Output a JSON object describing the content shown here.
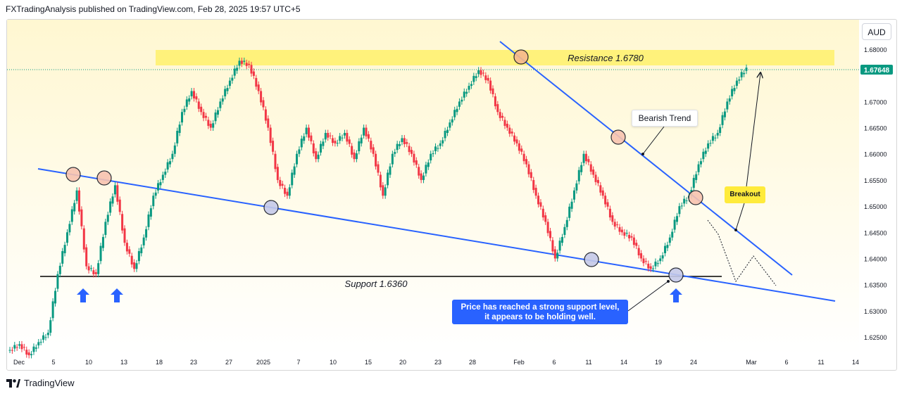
{
  "header": {
    "text": "FXTradingAnalysis published on TradingView.com, Feb 28, 2025 19:57 UTC+5"
  },
  "currency": "AUD",
  "footer": {
    "brand": "TradingView"
  },
  "price_tag": "1.67648",
  "annotations": {
    "resistance": "Resistance 1.6780",
    "support": "Support 1.6360",
    "bearish": "Bearish Trend",
    "breakout": "Breakout",
    "callout_line1": "Price has reached a strong support level,",
    "callout_line2": "it appears to be holding well."
  },
  "colors": {
    "up": "#089981",
    "down": "#f23645",
    "trend": "#2962ff",
    "zone": "#fff176",
    "background_top": "#fff8d6",
    "price_tag": "#089981"
  },
  "chart_data": {
    "type": "candlestick",
    "title": "",
    "ylim": [
      1.6205,
      1.6825
    ],
    "y_ticks": [
      "1.62500",
      "1.63000",
      "1.63500",
      "1.64000",
      "1.64500",
      "1.65000",
      "1.65500",
      "1.66000",
      "1.66500",
      "1.67000",
      "1.67500",
      "1.68000"
    ],
    "x_ticks": [
      "Dec",
      "5",
      "10",
      "13",
      "18",
      "23",
      "27",
      "2025",
      "7",
      "10",
      "15",
      "20",
      "23",
      "28",
      "Feb",
      "6",
      "11",
      "14",
      "19",
      "24",
      "Mar",
      "6",
      "11",
      "14"
    ],
    "resistance_level": 1.678,
    "support_level": 1.636,
    "last_price": 1.67648,
    "series": [
      {
        "name": "AUD price (approx)",
        "values": [
          1.6225,
          1.6236,
          1.6215,
          1.624,
          1.6258,
          1.637,
          1.645,
          1.653,
          1.6385,
          1.637,
          1.647,
          1.654,
          1.643,
          1.638,
          1.644,
          1.652,
          1.656,
          1.66,
          1.668,
          1.672,
          1.668,
          1.665,
          1.67,
          1.674,
          1.6778,
          1.677,
          1.672,
          1.665,
          1.655,
          1.652,
          1.66,
          1.665,
          1.659,
          1.664,
          1.662,
          1.664,
          1.659,
          1.665,
          1.66,
          1.652,
          1.66,
          1.663,
          1.66,
          1.655,
          1.66,
          1.662,
          1.666,
          1.67,
          1.673,
          1.676,
          1.674,
          1.668,
          1.665,
          1.662,
          1.658,
          1.652,
          1.647,
          1.64,
          1.646,
          1.653,
          1.66,
          1.656,
          1.652,
          1.647,
          1.645,
          1.644,
          1.64,
          1.638,
          1.64,
          1.644,
          1.65,
          1.652,
          1.658,
          1.662,
          1.664,
          1.67,
          1.674,
          1.67648
        ]
      }
    ]
  }
}
